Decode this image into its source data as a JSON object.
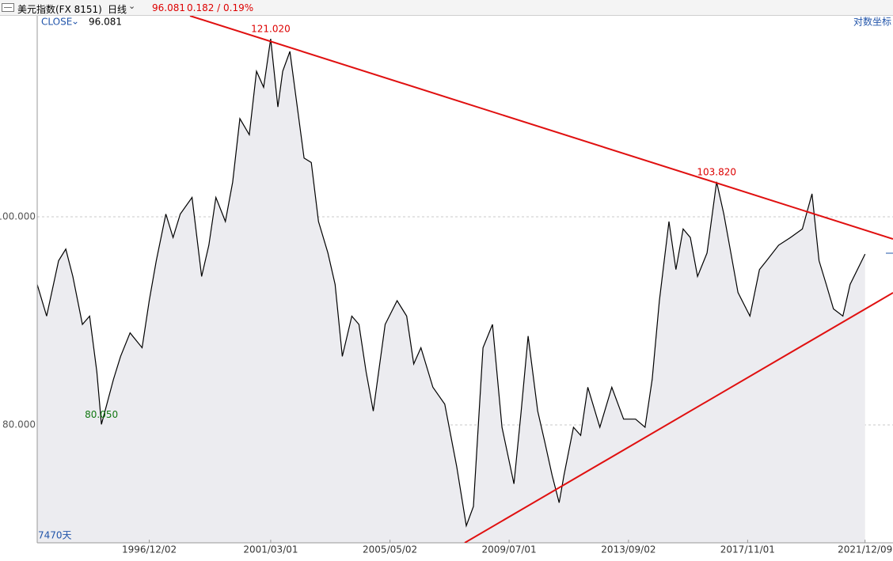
{
  "header": {
    "instrument": "美元指数(FX 8151)",
    "period": "日线",
    "last": "96.081",
    "change": "0.182 / 0.19%"
  },
  "chart_data": {
    "type": "line",
    "series_label": "CLOSE",
    "series_label_value": "96.081",
    "scale_label": "对数坐标",
    "count_label": "7470天",
    "log_scale": true,
    "grid": true,
    "fill_color": "#ececf0",
    "x": [
      "1993/01/01",
      "1993/05/01",
      "1993/10/01",
      "1994/01/01",
      "1994/04/01",
      "1994/08/01",
      "1994/11/01",
      "1995/02/01",
      "1995/04/01",
      "1995/06/01",
      "1995/09/01",
      "1995/12/01",
      "1996/04/01",
      "1996/09/01",
      "1996/12/01",
      "1997/03/01",
      "1997/07/01",
      "1997/10/01",
      "1998/01/01",
      "1998/06/01",
      "1998/10/01",
      "1999/01/01",
      "1999/04/01",
      "1999/08/01",
      "1999/11/01",
      "2000/02/01",
      "2000/06/01",
      "2000/09/01",
      "2000/12/01",
      "2001/03/01",
      "2001/06/01",
      "2001/08/01",
      "2001/11/01",
      "2002/01/01",
      "2002/05/01",
      "2002/08/01",
      "2002/11/01",
      "2003/03/01",
      "2003/06/01",
      "2003/09/01",
      "2004/01/01",
      "2004/04/01",
      "2004/07/01",
      "2004/10/01",
      "2005/03/01",
      "2005/08/01",
      "2005/12/01",
      "2006/03/01",
      "2006/06/01",
      "2006/11/01",
      "2007/04/01",
      "2007/09/01",
      "2008/01/01",
      "2008/04/01",
      "2008/08/01",
      "2008/12/01",
      "2009/04/01",
      "2009/09/01",
      "2009/12/01",
      "2010/03/01",
      "2010/07/01",
      "2010/10/01",
      "2011/01/01",
      "2011/04/01",
      "2011/06/01",
      "2011/10/01",
      "2012/01/01",
      "2012/04/01",
      "2012/09/01",
      "2013/02/01",
      "2013/07/01",
      "2013/12/01",
      "2014/04/01",
      "2014/07/01",
      "2014/10/01",
      "2015/02/01",
      "2015/05/01",
      "2015/08/01",
      "2015/11/01",
      "2016/02/01",
      "2016/06/01",
      "2016/10/01",
      "2017/01/01",
      "2017/04/01",
      "2017/07/01",
      "2017/12/01",
      "2018/04/01",
      "2018/07/01",
      "2018/12/01",
      "2019/05/01",
      "2019/10/01",
      "2020/02/01",
      "2020/05/01",
      "2020/08/01",
      "2020/11/01",
      "2021/03/01",
      "2021/06/01",
      "2021/12/09"
    ],
    "series": [
      {
        "name": "CLOSE",
        "color": "#000000",
        "values": [
          93.0,
          89.9,
          95.4,
          96.6,
          93.8,
          89.1,
          89.9,
          84.7,
          80.05,
          81.6,
          84.0,
          86.1,
          88.3,
          86.9,
          91.4,
          95.4,
          100.3,
          97.8,
          100.3,
          102.1,
          93.8,
          97.0,
          102.1,
          99.5,
          103.8,
          111.1,
          109.2,
          116.9,
          114.9,
          121.02,
          112.5,
          116.9,
          119.4,
          114.9,
          106.5,
          106.0,
          99.5,
          96.2,
          93.0,
          86.1,
          89.9,
          89.1,
          84.7,
          81.2,
          89.1,
          91.4,
          89.9,
          85.4,
          86.9,
          83.3,
          81.8,
          76.5,
          71.8,
          73.3,
          86.9,
          89.1,
          79.8,
          75.1,
          81.1,
          88.0,
          81.2,
          78.5,
          75.8,
          73.6,
          75.8,
          79.8,
          79.1,
          83.3,
          79.8,
          83.3,
          80.5,
          80.5,
          79.8,
          84.0,
          91.4,
          99.5,
          94.5,
          98.7,
          97.8,
          93.8,
          96.2,
          103.82,
          100.3,
          96.2,
          92.2,
          89.9,
          94.5,
          95.4,
          97.0,
          97.8,
          98.7,
          102.5,
          95.4,
          93.0,
          90.6,
          89.9,
          93.0,
          96.081
        ]
      }
    ],
    "annotations": [
      {
        "text": "121.020",
        "color": "#dd0000"
      },
      {
        "text": "103.820",
        "color": "#dd0000"
      },
      {
        "text": "80.050",
        "color": "#117711"
      }
    ],
    "xlim": [
      "1993/01/01",
      "2022/12/01"
    ],
    "xticks": [
      "1996/12/02",
      "2001/03/01",
      "2005/05/02",
      "2009/07/01",
      "2013/09/02",
      "2017/11/01",
      "2021/12/09"
    ],
    "ylim": [
      70.5,
      124.05
    ],
    "yticks": [
      {
        "value": 80,
        "label": "80.000"
      },
      {
        "value": 100,
        "label": "100.000"
      }
    ]
  }
}
